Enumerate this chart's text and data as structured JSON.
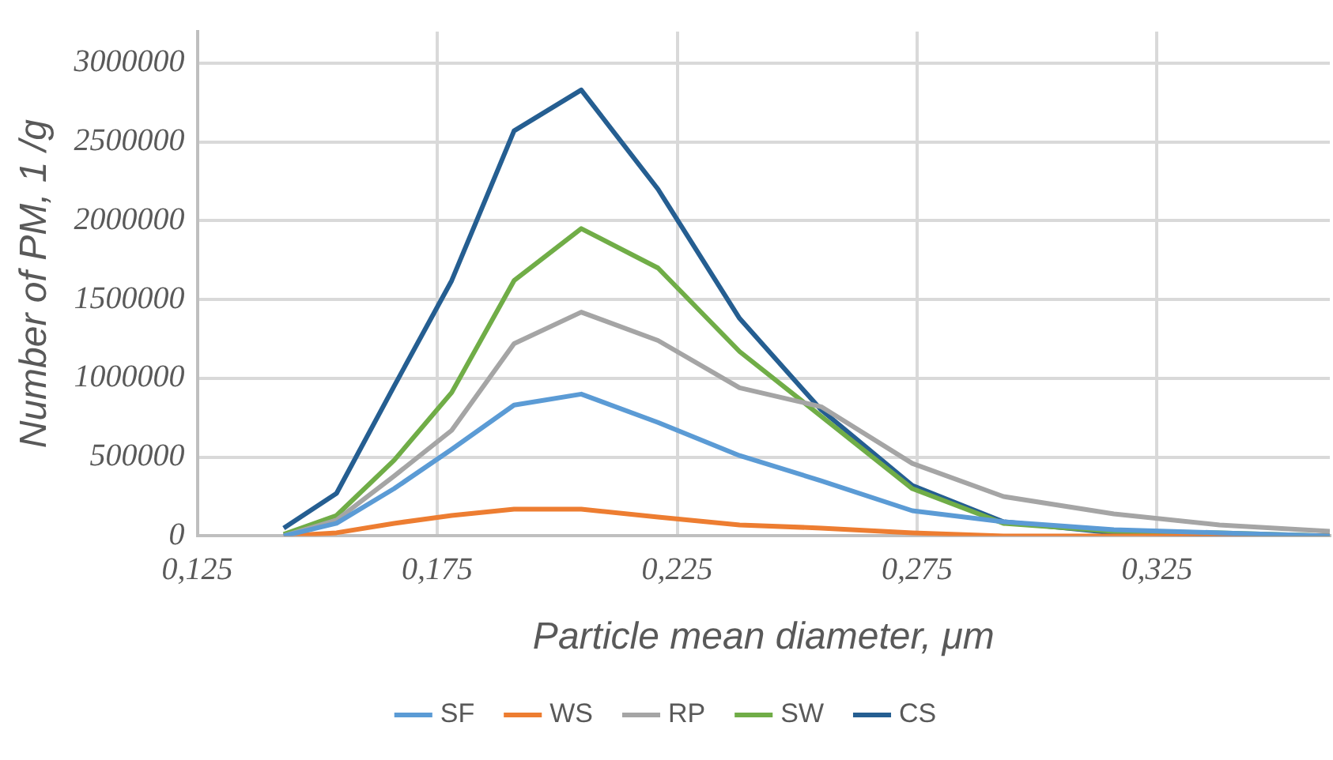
{
  "chart_data": {
    "type": "line",
    "xlabel": "Particle mean diameter, μm",
    "ylabel": "Number of PM, 1 /g",
    "x": [
      0.143,
      0.154,
      0.166,
      0.178,
      0.191,
      0.205,
      0.221,
      0.238,
      0.255,
      0.274,
      0.293,
      0.316,
      0.338,
      0.361
    ],
    "series": [
      {
        "name": "SF",
        "color": "#5b9bd5",
        "values": [
          0,
          80000,
          300000,
          550000,
          830000,
          900000,
          720000,
          510000,
          350000,
          160000,
          90000,
          40000,
          20000,
          0
        ]
      },
      {
        "name": "WS",
        "color": "#ed7d31",
        "values": [
          0,
          20000,
          80000,
          130000,
          170000,
          170000,
          120000,
          70000,
          50000,
          20000,
          0,
          0,
          0,
          0
        ]
      },
      {
        "name": "RP",
        "color": "#a5a5a5",
        "values": [
          0,
          100000,
          380000,
          670000,
          1220000,
          1420000,
          1240000,
          940000,
          820000,
          460000,
          250000,
          140000,
          70000,
          30000
        ]
      },
      {
        "name": "SW",
        "color": "#70ad47",
        "values": [
          10000,
          130000,
          480000,
          910000,
          1620000,
          1950000,
          1700000,
          1170000,
          760000,
          300000,
          80000,
          30000,
          20000,
          0
        ]
      },
      {
        "name": "CS",
        "color": "#255e91",
        "values": [
          50000,
          270000,
          950000,
          1620000,
          2570000,
          2830000,
          2200000,
          1380000,
          800000,
          320000,
          90000,
          20000,
          10000,
          0
        ]
      }
    ],
    "xlim": [
      0.125,
      0.361
    ],
    "xticks": [
      {
        "value": 0.125,
        "label": "0,125"
      },
      {
        "value": 0.175,
        "label": "0,175"
      },
      {
        "value": 0.225,
        "label": "0,225"
      },
      {
        "value": 0.275,
        "label": "0,275"
      },
      {
        "value": 0.325,
        "label": "0,325"
      }
    ],
    "ylim": [
      0,
      3200000
    ],
    "yticks": [
      0,
      500000,
      1000000,
      1500000,
      2000000,
      2500000,
      3000000
    ],
    "grid": true,
    "legend": "bottom",
    "marker": "none",
    "line_style": "solid"
  }
}
